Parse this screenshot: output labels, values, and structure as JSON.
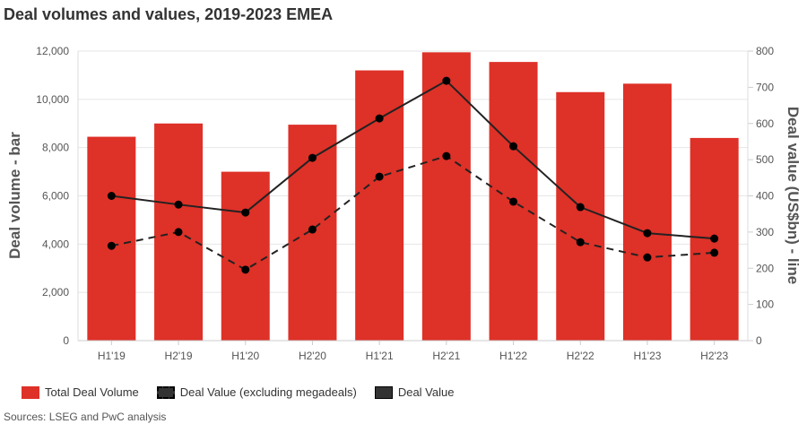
{
  "chart_data": {
    "type": "bar+line",
    "title": "Deal volumes and values, 2019-2023 EMEA",
    "categories": [
      "H1'19",
      "H2'19",
      "H1'20",
      "H2'20",
      "H1'21",
      "H2'21",
      "H1'22",
      "H2'22",
      "H1'23",
      "H2'23"
    ],
    "ylabel": "Deal volume - bar",
    "y2label": "Deal value (US$bn) - line",
    "ylim": [
      0,
      12000
    ],
    "y2lim": [
      0,
      800
    ],
    "yticks": [
      "0",
      "2,000",
      "4,000",
      "6,000",
      "8,000",
      "10,000",
      "12,000"
    ],
    "y2ticks": [
      "0",
      "100",
      "200",
      "300",
      "400",
      "500",
      "600",
      "700",
      "800"
    ],
    "grid": true,
    "legend_position": "bottom-left",
    "series": [
      {
        "name": "Total Deal Volume",
        "type": "bar",
        "axis": "left",
        "color": "#de3128",
        "values": [
          8450,
          9000,
          7000,
          8950,
          11200,
          11950,
          11550,
          10300,
          10650,
          8400
        ]
      },
      {
        "name": "Deal Value (excluding megadeals)",
        "type": "line",
        "style": "dashed",
        "axis": "right",
        "color": "#222222",
        "values": [
          262,
          300,
          196,
          307,
          453,
          510,
          384,
          272,
          230,
          243
        ]
      },
      {
        "name": "Deal Value",
        "type": "line",
        "style": "solid",
        "axis": "right",
        "color": "#222222",
        "values": [
          400,
          376,
          354,
          505,
          614,
          718,
          537,
          369,
          297,
          282
        ]
      }
    ]
  },
  "source": "Sources: LSEG and PwC analysis"
}
